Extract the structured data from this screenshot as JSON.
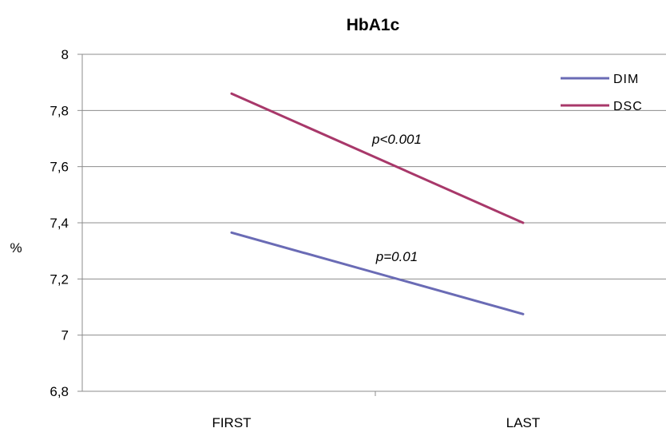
{
  "chart_data": {
    "type": "line",
    "title": "HbA1c",
    "xlabel": "",
    "ylabel": "%",
    "categories": [
      "FIRST",
      "LAST"
    ],
    "ylim": [
      6.8,
      8
    ],
    "yticks": [
      "6,8",
      "7",
      "7,2",
      "7,4",
      "7,6",
      "7,8",
      "8"
    ],
    "ytick_values": [
      6.8,
      7.0,
      7.2,
      7.4,
      7.6,
      7.8,
      8.0
    ],
    "grid": true,
    "legend": "top-right",
    "series": [
      {
        "name": "DIM",
        "values": [
          7.365,
          7.075
        ],
        "color": "#6a6bb5"
      },
      {
        "name": "DSC",
        "values": [
          7.86,
          7.4
        ],
        "color": "#a8386a"
      }
    ],
    "annotations": [
      {
        "text": "p<0.001",
        "series": "DSC"
      },
      {
        "text": "p=0.01",
        "series": "DIM"
      }
    ]
  }
}
